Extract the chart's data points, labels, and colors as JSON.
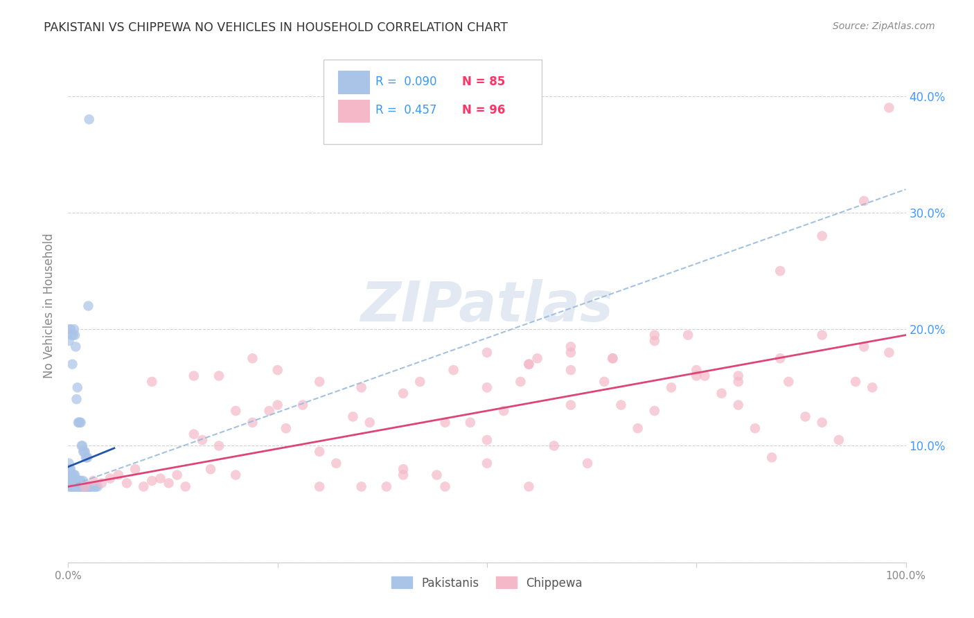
{
  "title": "PAKISTANI VS CHIPPEWA NO VEHICLES IN HOUSEHOLD CORRELATION CHART",
  "source": "Source: ZipAtlas.com",
  "watermark": "ZIPatlas",
  "ylabel": "No Vehicles in Household",
  "xlim": [
    0.0,
    1.0
  ],
  "ylim": [
    0.0,
    0.44
  ],
  "yticks": [
    0.0,
    0.1,
    0.2,
    0.3,
    0.4
  ],
  "background_color": "#ffffff",
  "pakistani_color": "#aac4e8",
  "chippewa_color": "#f5b8c8",
  "pakistani_line_color": "#2255aa",
  "chippewa_line_color": "#dd4477",
  "dashed_line_color": "#99bbdd",
  "pakistani_R": 0.09,
  "pakistani_N": 85,
  "chippewa_R": 0.457,
  "chippewa_N": 96,
  "grid_color": "#cccccc",
  "tick_label_color": "#4499ff",
  "axis_label_color": "#888888",
  "title_color": "#333333",
  "source_color": "#888888",
  "watermark_color": "#cdd8e8",
  "legend_edge_color": "#cccccc",
  "legend_R_color": "#3399ff",
  "legend_N_color": "#ff3366",
  "pak_x": [
    0.001,
    0.001,
    0.001,
    0.001,
    0.001,
    0.002,
    0.002,
    0.002,
    0.002,
    0.003,
    0.003,
    0.003,
    0.003,
    0.004,
    0.004,
    0.004,
    0.005,
    0.005,
    0.005,
    0.006,
    0.006,
    0.006,
    0.007,
    0.007,
    0.007,
    0.008,
    0.008,
    0.008,
    0.009,
    0.009,
    0.01,
    0.01,
    0.011,
    0.011,
    0.012,
    0.012,
    0.013,
    0.013,
    0.014,
    0.014,
    0.015,
    0.015,
    0.016,
    0.017,
    0.018,
    0.018,
    0.019,
    0.02,
    0.021,
    0.022,
    0.023,
    0.024,
    0.025,
    0.026,
    0.027,
    0.028,
    0.03,
    0.032,
    0.033,
    0.035,
    0.001,
    0.002,
    0.003,
    0.004,
    0.005,
    0.006,
    0.007,
    0.008,
    0.009,
    0.01,
    0.011,
    0.012,
    0.013,
    0.014,
    0.015,
    0.016,
    0.017,
    0.018,
    0.019,
    0.02,
    0.021,
    0.022,
    0.023,
    0.024,
    0.025
  ],
  "pak_y": [
    0.065,
    0.07,
    0.075,
    0.08,
    0.085,
    0.065,
    0.07,
    0.075,
    0.08,
    0.065,
    0.07,
    0.075,
    0.08,
    0.065,
    0.07,
    0.075,
    0.065,
    0.07,
    0.075,
    0.065,
    0.07,
    0.075,
    0.065,
    0.07,
    0.075,
    0.065,
    0.07,
    0.075,
    0.065,
    0.07,
    0.065,
    0.07,
    0.065,
    0.07,
    0.065,
    0.07,
    0.065,
    0.07,
    0.065,
    0.07,
    0.065,
    0.07,
    0.065,
    0.065,
    0.065,
    0.07,
    0.065,
    0.065,
    0.065,
    0.065,
    0.065,
    0.065,
    0.065,
    0.065,
    0.065,
    0.065,
    0.065,
    0.065,
    0.065,
    0.065,
    0.19,
    0.2,
    0.2,
    0.195,
    0.17,
    0.195,
    0.2,
    0.195,
    0.185,
    0.14,
    0.15,
    0.12,
    0.12,
    0.12,
    0.12,
    0.1,
    0.1,
    0.095,
    0.095,
    0.095,
    0.09,
    0.09,
    0.09,
    0.22,
    0.38
  ],
  "chip_x": [
    0.02,
    0.03,
    0.04,
    0.05,
    0.06,
    0.07,
    0.08,
    0.09,
    0.1,
    0.11,
    0.12,
    0.13,
    0.14,
    0.15,
    0.16,
    0.17,
    0.18,
    0.2,
    0.22,
    0.24,
    0.26,
    0.28,
    0.3,
    0.32,
    0.34,
    0.36,
    0.38,
    0.4,
    0.42,
    0.44,
    0.46,
    0.48,
    0.5,
    0.52,
    0.54,
    0.56,
    0.58,
    0.6,
    0.62,
    0.64,
    0.66,
    0.68,
    0.7,
    0.72,
    0.74,
    0.76,
    0.78,
    0.8,
    0.82,
    0.84,
    0.86,
    0.88,
    0.9,
    0.92,
    0.94,
    0.96,
    0.98,
    0.5,
    0.55,
    0.6,
    0.18,
    0.22,
    0.25,
    0.3,
    0.35,
    0.4,
    0.45,
    0.5,
    0.55,
    0.6,
    0.65,
    0.7,
    0.75,
    0.8,
    0.85,
    0.9,
    0.95,
    0.1,
    0.15,
    0.2,
    0.25,
    0.3,
    0.35,
    0.4,
    0.45,
    0.5,
    0.55,
    0.6,
    0.65,
    0.7,
    0.75,
    0.8,
    0.85,
    0.9,
    0.95,
    0.98
  ],
  "chip_y": [
    0.065,
    0.07,
    0.068,
    0.072,
    0.075,
    0.068,
    0.08,
    0.065,
    0.07,
    0.072,
    0.068,
    0.075,
    0.065,
    0.11,
    0.105,
    0.08,
    0.1,
    0.075,
    0.12,
    0.13,
    0.115,
    0.135,
    0.065,
    0.085,
    0.125,
    0.12,
    0.065,
    0.08,
    0.155,
    0.075,
    0.165,
    0.12,
    0.085,
    0.13,
    0.155,
    0.175,
    0.1,
    0.135,
    0.085,
    0.155,
    0.135,
    0.115,
    0.13,
    0.15,
    0.195,
    0.16,
    0.145,
    0.135,
    0.115,
    0.09,
    0.155,
    0.125,
    0.12,
    0.105,
    0.155,
    0.15,
    0.18,
    0.15,
    0.17,
    0.18,
    0.16,
    0.175,
    0.165,
    0.155,
    0.15,
    0.145,
    0.12,
    0.18,
    0.17,
    0.185,
    0.175,
    0.19,
    0.165,
    0.16,
    0.175,
    0.195,
    0.185,
    0.155,
    0.16,
    0.13,
    0.135,
    0.095,
    0.065,
    0.075,
    0.065,
    0.105,
    0.065,
    0.165,
    0.175,
    0.195,
    0.16,
    0.155,
    0.25,
    0.28,
    0.31,
    0.39
  ],
  "pak_line_x": [
    0.0,
    0.055
  ],
  "pak_line_y_start": 0.082,
  "pak_line_y_end": 0.098,
  "dashed_line_x": [
    0.0,
    1.0
  ],
  "dashed_line_y_start": 0.065,
  "dashed_line_y_end": 0.32,
  "chip_line_x": [
    0.0,
    1.0
  ],
  "chip_line_y_start": 0.065,
  "chip_line_y_end": 0.195
}
